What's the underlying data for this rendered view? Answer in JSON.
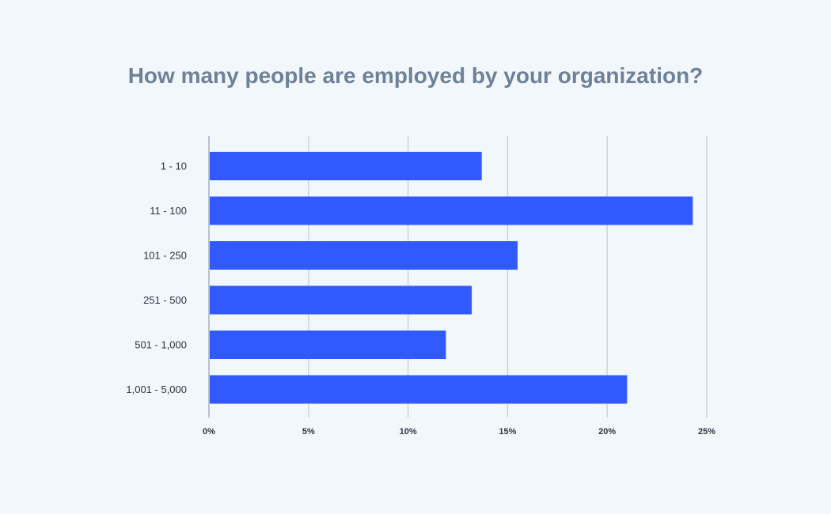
{
  "chart_data": {
    "type": "bar",
    "orientation": "horizontal",
    "title": "How many people are employed by your organization?",
    "categories": [
      "1 - 10",
      "11 - 100",
      "101 - 250",
      "251 - 500",
      "501 - 1,000",
      "1,001 - 5,000"
    ],
    "values": [
      13.7,
      24.3,
      15.5,
      13.2,
      11.9,
      21.0
    ],
    "x_ticks": [
      "0%",
      "5%",
      "10%",
      "15%",
      "20%",
      "25%"
    ],
    "xlim": [
      0,
      25
    ],
    "grid": true,
    "bar_color": "#3059ff"
  }
}
